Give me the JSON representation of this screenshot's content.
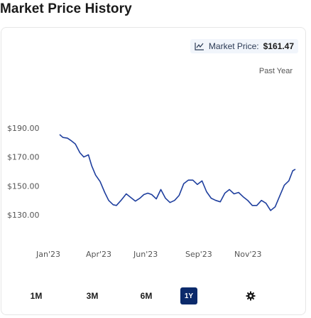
{
  "page": {
    "title": "Market Price History"
  },
  "badge": {
    "label": "Market Price:",
    "value": "$161.47",
    "icon": "trend-chart-icon"
  },
  "range_label": "Past Year",
  "controls": {
    "ranges": [
      "1M",
      "3M",
      "6M",
      "1Y"
    ],
    "active": "1Y",
    "settings_icon": "gear-icon"
  },
  "colors": {
    "line": "#1f3f9e",
    "active_button": "#0b2a6b"
  },
  "chart_data": {
    "type": "line",
    "title": "Market Price History",
    "xlabel": "",
    "ylabel": "",
    "y_tick_labels": [
      "$190.00",
      "$170.00",
      "$150.00",
      "$130.00"
    ],
    "y_ticks": [
      190,
      170,
      150,
      130
    ],
    "ylim": [
      130,
      190
    ],
    "x_tick_labels": [
      "Jan'23",
      "Apr'23",
      "Jun'23",
      "Sep'23",
      "Nov'23"
    ],
    "x_ticks": [
      "2023-01-01",
      "2023-04-01",
      "2023-06-01",
      "2023-09-01",
      "2023-11-01"
    ],
    "xlim": [
      "2023-01-01",
      "2023-12-28"
    ],
    "grid": false,
    "legend": "none",
    "series": [
      {
        "x": [
          "2023-01-01",
          "2023-01-06",
          "2023-01-13",
          "2023-01-18",
          "2023-01-25",
          "2023-02-01",
          "2023-02-07",
          "2023-02-14",
          "2023-02-19",
          "2023-02-25",
          "2023-03-04",
          "2023-03-11",
          "2023-03-17",
          "2023-03-24",
          "2023-03-29",
          "2023-04-05",
          "2023-04-13",
          "2023-04-20",
          "2023-04-27",
          "2023-05-04",
          "2023-05-10",
          "2023-05-16",
          "2023-05-22",
          "2023-05-29",
          "2023-06-05",
          "2023-06-12",
          "2023-06-19",
          "2023-06-26",
          "2023-07-03",
          "2023-07-10",
          "2023-07-17",
          "2023-07-24",
          "2023-07-31",
          "2023-08-07",
          "2023-08-14",
          "2023-08-21",
          "2023-08-28",
          "2023-09-04",
          "2023-09-11",
          "2023-09-18",
          "2023-09-25",
          "2023-10-02",
          "2023-10-09",
          "2023-10-16",
          "2023-10-23",
          "2023-10-30",
          "2023-11-06",
          "2023-11-13",
          "2023-11-20",
          "2023-11-27",
          "2023-12-04",
          "2023-12-11",
          "2023-12-18",
          "2023-12-24",
          "2023-12-28"
        ],
        "y": [
          185.5,
          183.5,
          183.0,
          181.5,
          179.0,
          173.0,
          170.0,
          171.5,
          164.0,
          157.5,
          153.0,
          145.5,
          140.0,
          137.0,
          136.5,
          140.0,
          144.5,
          142.0,
          139.5,
          141.5,
          144.0,
          145.0,
          144.0,
          141.0,
          147.5,
          141.5,
          138.5,
          140.0,
          143.5,
          151.5,
          154.0,
          154.0,
          151.0,
          153.5,
          146.0,
          141.5,
          140.0,
          139.0,
          145.0,
          147.5,
          144.5,
          145.5,
          142.5,
          140.0,
          136.5,
          136.5,
          140.0,
          138.0,
          133.0,
          135.5,
          143.0,
          150.5,
          153.5,
          160.5,
          161.5
        ]
      }
    ]
  }
}
